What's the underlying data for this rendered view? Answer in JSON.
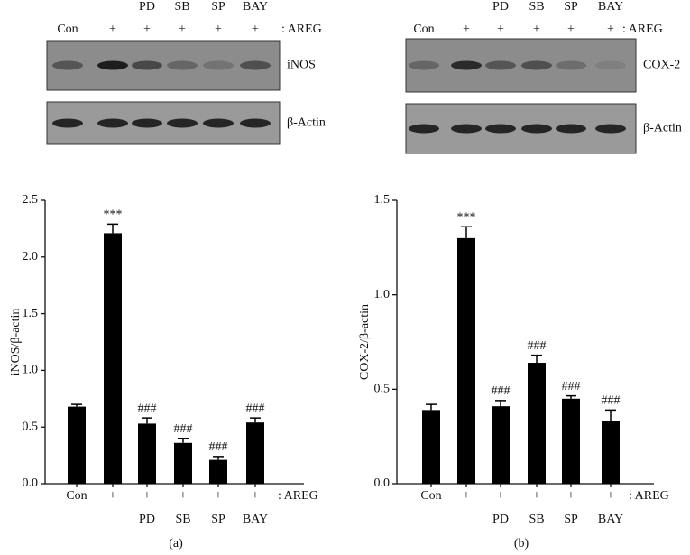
{
  "chart_data": [
    {
      "type": "bar",
      "panel_label": "(a)",
      "y_label": "iNOS/β-actin",
      "categories": [
        "Con",
        "+",
        "+",
        "+",
        "+",
        "+"
      ],
      "inhibitors": [
        null,
        null,
        "PD",
        "SB",
        "SP",
        "BAY"
      ],
      "treatment_label": ": AREG",
      "values": [
        0.68,
        2.21,
        0.53,
        0.36,
        0.21,
        0.54
      ],
      "errors": [
        0.02,
        0.08,
        0.05,
        0.04,
        0.03,
        0.04
      ],
      "annotations": [
        null,
        "***",
        "###",
        "###",
        "###",
        "###"
      ],
      "color": "#000000",
      "ylim": [
        0,
        2.5
      ],
      "yticks": [
        {
          "value": 0,
          "label": "0.0"
        },
        0.5,
        {
          "value": 1,
          "label": "1.0"
        },
        1.5,
        {
          "value": 2,
          "label": "2.0"
        },
        2.5
      ],
      "blot": {
        "lanes": [
          "Con",
          "+",
          "+",
          "+",
          "+",
          "+"
        ],
        "inhibitors": [
          null,
          null,
          "PD",
          "SB",
          "SP",
          "BAY"
        ],
        "treatment_label": ": AREG",
        "proteins": [
          "iNOS",
          "β-Actin"
        ]
      }
    },
    {
      "type": "bar",
      "panel_label": "(b)",
      "y_label": "COX-2/β-actin",
      "categories": [
        "Con",
        "+",
        "+",
        "+",
        "+",
        "+"
      ],
      "inhibitors": [
        null,
        null,
        "PD",
        "SB",
        "SP",
        "BAY"
      ],
      "treatment_label": ": AREG",
      "values": [
        0.39,
        1.3,
        0.41,
        0.64,
        0.45,
        0.33
      ],
      "errors": [
        0.03,
        0.06,
        0.03,
        0.04,
        0.015,
        0.06
      ],
      "annotations": [
        null,
        "***",
        "###",
        "###",
        "###",
        "###"
      ],
      "color": "#000000",
      "ylim": [
        0,
        1.5
      ],
      "yticks": [
        {
          "value": 0,
          "label": "0.0"
        },
        0.5,
        {
          "value": 1,
          "label": "1.0"
        },
        1.5
      ],
      "blot": {
        "lanes": [
          "Con",
          "+",
          "+",
          "+",
          "+",
          "+"
        ],
        "inhibitors": [
          null,
          null,
          "PD",
          "SB",
          "SP",
          "BAY"
        ],
        "treatment_label": ": AREG",
        "proteins": [
          "COX-2",
          "β-Actin"
        ]
      }
    }
  ]
}
